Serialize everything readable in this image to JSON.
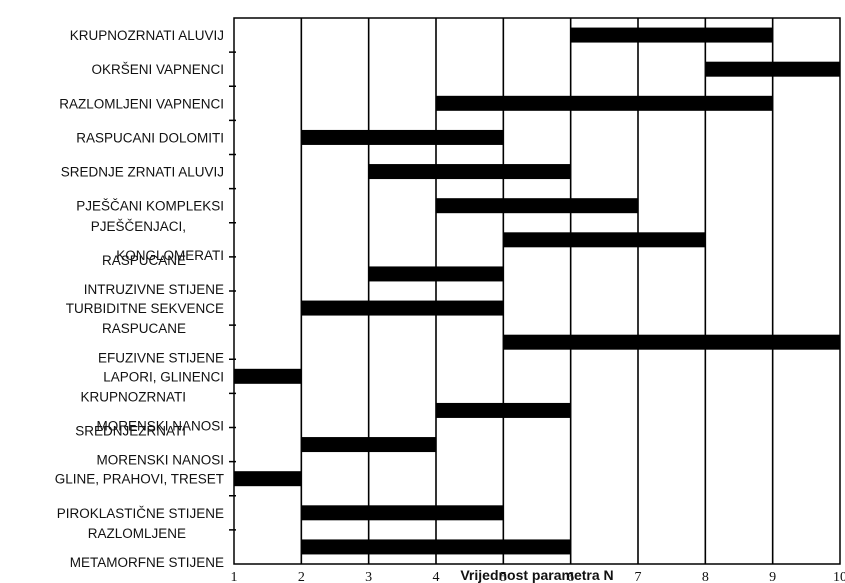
{
  "chart_data": {
    "type": "bar",
    "orientation": "horizontal-range",
    "xlabel": "Vrijednost parametra N",
    "ylabel": "",
    "xlim": [
      1,
      10
    ],
    "x_ticks": [
      "1",
      "2",
      "3",
      "4",
      "5",
      "6",
      "7",
      "8",
      "9",
      "10"
    ],
    "grid": "vertical",
    "bar_color": "#000000",
    "categories": [
      [
        "KRUPNOZRNATI ALUVIJ"
      ],
      [
        "OKRŠENI VAPNENCI"
      ],
      [
        "RAZLOMLJENI VAPNENCI"
      ],
      [
        "RASPUCANI DOLOMITI"
      ],
      [
        "SREDNJE  ZRNATI ALUVIJ"
      ],
      [
        "PJEŠČANI KOMPLEKSI"
      ],
      [
        "PJEŠČENJACI,",
        "KONGLOMERATI"
      ],
      [
        "RASPUCANE",
        "INTRUZIVNE STIJENE"
      ],
      [
        "TURBIDITNE SEKVENCE"
      ],
      [
        "RASPUCANE",
        "EFUZIVNE STIJENE"
      ],
      [
        "LAPORI, GLINENCI"
      ],
      [
        "KRUPNOZRNATI",
        "MORENSKI NANOSI"
      ],
      [
        "SREDNJEZRNATI",
        "MORENSKI NANOSI"
      ],
      [
        "GLINE, PRAHOVI, TRESET"
      ],
      [
        "PIROKLASTIČNE STIJENE"
      ],
      [
        "RAZLOMLJENE",
        "METAMORFNE STIJENE"
      ]
    ],
    "ranges": [
      [
        6,
        9
      ],
      [
        8,
        10
      ],
      [
        4,
        9
      ],
      [
        2,
        5
      ],
      [
        3,
        6
      ],
      [
        4,
        7
      ],
      [
        5,
        8
      ],
      [
        3,
        5
      ],
      [
        2,
        5
      ],
      [
        5,
        10
      ],
      [
        1,
        2
      ],
      [
        4,
        6
      ],
      [
        2,
        4
      ],
      [
        1,
        2
      ],
      [
        2,
        5
      ],
      [
        2,
        6
      ]
    ]
  }
}
